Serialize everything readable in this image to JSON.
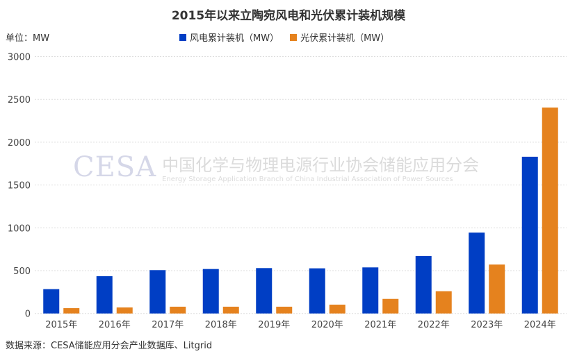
{
  "title": "2015年以来立陶宛风电和光伏累计装机规模",
  "unit_label": "单位：MW",
  "source": "数据来源：CESA储能应用分会产业数据库、Litgrid",
  "watermark": {
    "logo": "CESA",
    "cn": "中国化学与物理电源行业协会储能应用分会",
    "en": "Energy Storage Application Branch of China Industrial Association of Power Sources"
  },
  "chart_data": {
    "type": "bar",
    "title": "2015年以来立陶宛风电和光伏累计装机规模",
    "ylabel": "单位：MW",
    "ylim": [
      0,
      3000
    ],
    "yticks": [
      0,
      500,
      1000,
      1500,
      2000,
      2500,
      3000
    ],
    "grid": true,
    "legend": "top",
    "categories": [
      "2015年",
      "2016年",
      "2017年",
      "2018年",
      "2019年",
      "2020年",
      "2021年",
      "2022年",
      "2023年",
      "2024年"
    ],
    "series": [
      {
        "name": "风电累计装机（MW）",
        "color": "#003ec4",
        "values": [
          284,
          435,
          506,
          519,
          530,
          527,
          538,
          671,
          944,
          1830
        ]
      },
      {
        "name": "光伏累计装机（MW）",
        "color": "#e5821e",
        "values": [
          62,
          70,
          79,
          79,
          79,
          103,
          170,
          260,
          571,
          2405
        ]
      }
    ]
  }
}
